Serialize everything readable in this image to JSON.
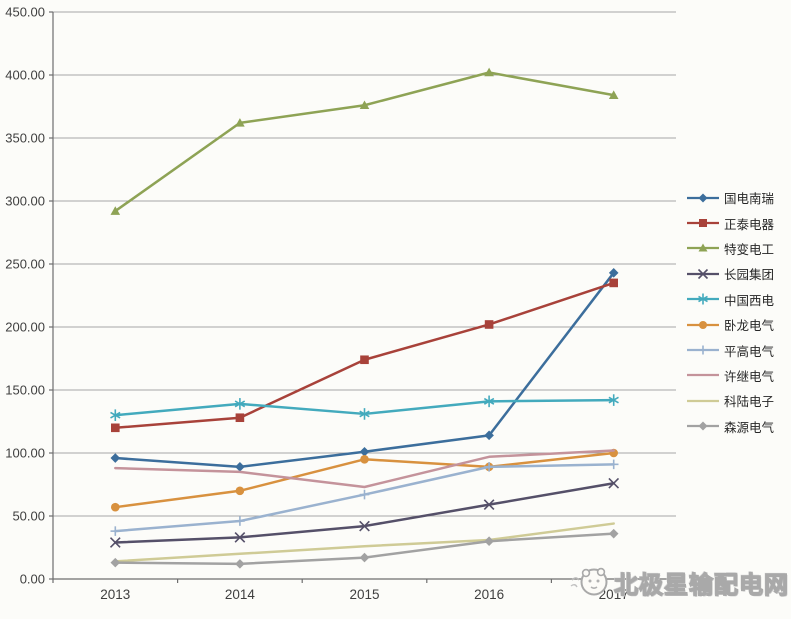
{
  "chart_data": {
    "type": "line",
    "title": "",
    "categories": [
      "2013",
      "2014",
      "2015",
      "2016",
      "2017"
    ],
    "series": [
      {
        "name": "国电南瑞",
        "color": "#3C6E9C",
        "marker": "diamond",
        "values": [
          96,
          89,
          101,
          114,
          243
        ]
      },
      {
        "name": "正泰电器",
        "color": "#A8423A",
        "marker": "square",
        "values": [
          120,
          128,
          174,
          202,
          235
        ]
      },
      {
        "name": "特变电工",
        "color": "#8EA355",
        "marker": "triangle",
        "values": [
          292,
          362,
          376,
          402,
          384
        ]
      },
      {
        "name": "长园集团",
        "color": "#555069",
        "marker": "x",
        "values": [
          29,
          33,
          42,
          59,
          76
        ]
      },
      {
        "name": "中国西电",
        "color": "#43AABD",
        "marker": "asterisk",
        "values": [
          130,
          139,
          131,
          141,
          142
        ]
      },
      {
        "name": "卧龙电气",
        "color": "#D8913F",
        "marker": "circle",
        "values": [
          57,
          70,
          95,
          89,
          100
        ]
      },
      {
        "name": "平高电气",
        "color": "#9AB2CF",
        "marker": "plus",
        "values": [
          38,
          46,
          67,
          89,
          91
        ]
      },
      {
        "name": "许继电气",
        "color": "#C4939B",
        "marker": "none",
        "values": [
          88,
          85,
          73,
          97,
          102
        ]
      },
      {
        "name": "科陆电子",
        "color": "#CFCB96",
        "marker": "none",
        "values": [
          14,
          20,
          26,
          31,
          44
        ]
      },
      {
        "name": "森源电气",
        "color": "#A2A2A2",
        "marker": "diamond",
        "values": [
          13,
          12,
          17,
          30,
          36
        ]
      }
    ],
    "ylim": [
      0,
      450
    ],
    "y_tick_step": 50,
    "y_tick_labels": [
      "0.00",
      "50.00",
      "100.00",
      "150.00",
      "200.00",
      "250.00",
      "300.00",
      "350.00",
      "400.00",
      "450.00"
    ],
    "xlabel": "",
    "ylabel": "",
    "grid": "horizontal",
    "legend_position": "right"
  },
  "watermark": {
    "text": "北极星输配电网"
  },
  "style": {
    "gridline_color": "#A6A6A6",
    "axis_color": "#6E6E6E",
    "tick_label_color": "#3F3F3F"
  }
}
